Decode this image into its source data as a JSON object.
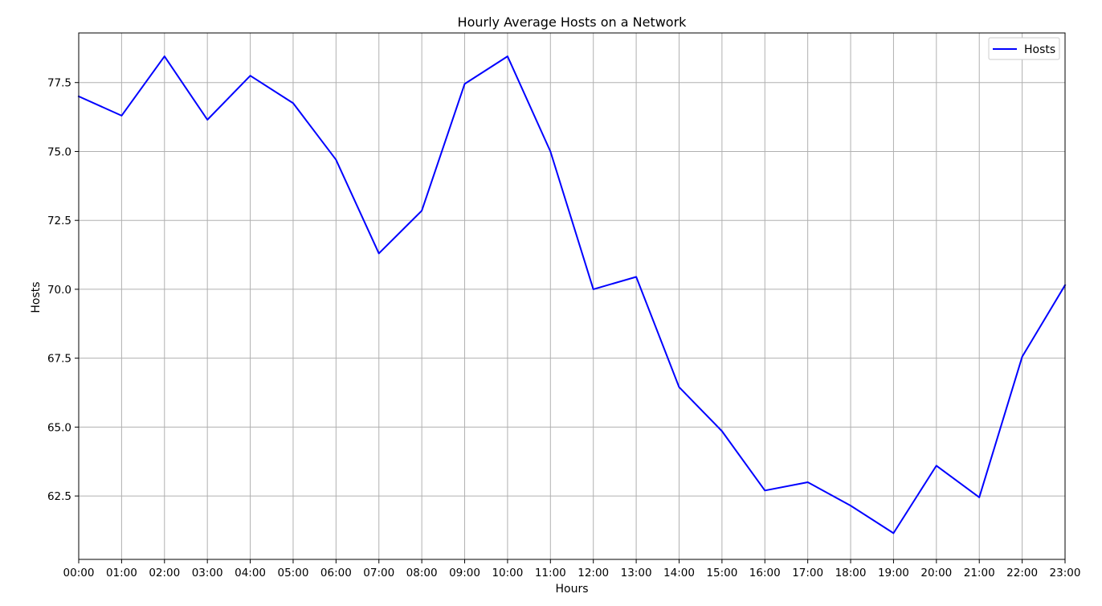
{
  "chart_data": {
    "type": "line",
    "title": "Hourly Average Hosts on a Network",
    "xlabel": "Hours",
    "ylabel": "Hosts",
    "categories": [
      "00:00",
      "01:00",
      "02:00",
      "03:00",
      "04:00",
      "05:00",
      "06:00",
      "07:00",
      "08:00",
      "09:00",
      "10:00",
      "11:00",
      "12:00",
      "13:00",
      "14:00",
      "15:00",
      "16:00",
      "17:00",
      "18:00",
      "19:00",
      "20:00",
      "21:00",
      "22:00",
      "23:00"
    ],
    "series": [
      {
        "name": "Hosts",
        "color": "#0000ff",
        "values": [
          77.0,
          76.3,
          78.45,
          76.15,
          77.75,
          76.75,
          74.7,
          71.3,
          72.85,
          77.45,
          78.45,
          75.0,
          70.0,
          70.45,
          66.45,
          64.85,
          62.7,
          63.0,
          62.15,
          61.15,
          63.6,
          62.45,
          67.55,
          70.15
        ]
      }
    ],
    "ylim": [
      60.2,
      79.3
    ],
    "yticks": [
      "62.5",
      "65.0",
      "67.5",
      "70.0",
      "72.5",
      "75.0",
      "77.5"
    ],
    "grid": true,
    "legend": "top-right",
    "colors": {
      "grid": "#b0b0b0",
      "axes": "#000000"
    }
  }
}
